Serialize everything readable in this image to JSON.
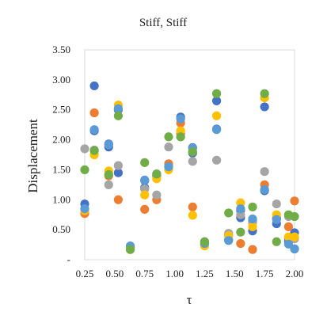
{
  "chart_data": {
    "type": "scatter",
    "title": "Stiff, Stiff",
    "xlabel": "τ",
    "ylabel": "Displacement",
    "xlim": [
      0.25,
      2.0
    ],
    "ylim": [
      0,
      3.5
    ],
    "x_ticks": [
      "0.25",
      "0.50",
      "0.75",
      "1.00",
      "1.25",
      "1.50",
      "1.75",
      "2.00"
    ],
    "y_ticks": [
      "-",
      "0.50",
      "1.00",
      "1.50",
      "2.00",
      "2.50",
      "3.00",
      "3.50"
    ],
    "grid": false,
    "legend": "none",
    "series": [
      {
        "color": "#4472C4",
        "points": [
          [
            0.25,
            0.93
          ],
          [
            0.33,
            2.9
          ],
          [
            0.33,
            2.15
          ],
          [
            0.45,
            1.88
          ],
          [
            0.45,
            1.93
          ],
          [
            0.53,
            1.45
          ],
          [
            0.53,
            2.5
          ],
          [
            0.63,
            0.22
          ],
          [
            0.75,
            1.2
          ],
          [
            0.75,
            1.32
          ],
          [
            0.85,
            1.4
          ],
          [
            0.95,
            1.55
          ],
          [
            1.05,
            2.38
          ],
          [
            1.15,
            1.87
          ],
          [
            1.15,
            1.78
          ],
          [
            1.25,
            0.27
          ],
          [
            1.35,
            2.65
          ],
          [
            1.35,
            2.18
          ],
          [
            1.45,
            0.33
          ],
          [
            1.55,
            0.7
          ],
          [
            1.55,
            0.82
          ],
          [
            1.65,
            0.48
          ],
          [
            1.65,
            0.65
          ],
          [
            1.75,
            2.55
          ],
          [
            1.75,
            1.15
          ],
          [
            1.85,
            0.6
          ],
          [
            1.85,
            0.68
          ],
          [
            1.95,
            0.35
          ],
          [
            1.95,
            0.3
          ],
          [
            2.0,
            0.45
          ],
          [
            2.0,
            0.18
          ]
        ]
      },
      {
        "color": "#ED7D31",
        "points": [
          [
            0.25,
            0.77
          ],
          [
            0.33,
            2.45
          ],
          [
            0.45,
            1.4
          ],
          [
            0.53,
            1.0
          ],
          [
            0.63,
            0.2
          ],
          [
            0.75,
            0.84
          ],
          [
            0.85,
            1.0
          ],
          [
            0.95,
            1.6
          ],
          [
            1.05,
            2.28
          ],
          [
            1.05,
            2.1
          ],
          [
            1.15,
            0.88
          ],
          [
            1.25,
            0.25
          ],
          [
            1.45,
            0.4
          ],
          [
            1.55,
            0.27
          ],
          [
            1.65,
            0.17
          ],
          [
            1.75,
            1.25
          ],
          [
            1.85,
            0.7
          ],
          [
            1.95,
            0.55
          ],
          [
            2.0,
            0.98
          ]
        ]
      },
      {
        "color": "#A5A5A5",
        "points": [
          [
            0.25,
            1.85
          ],
          [
            0.33,
            1.83
          ],
          [
            0.45,
            1.25
          ],
          [
            0.53,
            1.57
          ],
          [
            0.63,
            0.2
          ],
          [
            0.75,
            1.18
          ],
          [
            0.85,
            1.08
          ],
          [
            0.95,
            1.88
          ],
          [
            1.05,
            2.05
          ],
          [
            1.15,
            1.64
          ],
          [
            1.25,
            0.3
          ],
          [
            1.35,
            1.66
          ],
          [
            1.45,
            0.44
          ],
          [
            1.55,
            0.75
          ],
          [
            1.65,
            0.62
          ],
          [
            1.75,
            1.47
          ],
          [
            1.85,
            0.93
          ],
          [
            1.95,
            0.72
          ],
          [
            2.0,
            0.35
          ]
        ]
      },
      {
        "color": "#FFC000",
        "points": [
          [
            0.25,
            0.82
          ],
          [
            0.33,
            1.75
          ],
          [
            0.45,
            1.48
          ],
          [
            0.53,
            2.58
          ],
          [
            0.63,
            0.17
          ],
          [
            0.75,
            1.08
          ],
          [
            0.85,
            1.35
          ],
          [
            0.95,
            1.5
          ],
          [
            1.05,
            2.15
          ],
          [
            1.15,
            0.74
          ],
          [
            1.25,
            0.23
          ],
          [
            1.35,
            2.4
          ],
          [
            1.45,
            0.4
          ],
          [
            1.55,
            0.95
          ],
          [
            1.65,
            0.55
          ],
          [
            1.75,
            2.7
          ],
          [
            1.85,
            0.75
          ],
          [
            1.95,
            0.38
          ],
          [
            2.0,
            0.38
          ]
        ]
      },
      {
        "color": "#5B9BD5",
        "points": [
          [
            0.25,
            0.85
          ],
          [
            0.33,
            2.17
          ],
          [
            0.45,
            1.92
          ],
          [
            0.53,
            2.52
          ],
          [
            0.63,
            0.23
          ],
          [
            0.75,
            1.33
          ],
          [
            0.85,
            1.43
          ],
          [
            0.95,
            1.55
          ],
          [
            1.05,
            2.35
          ],
          [
            1.15,
            1.86
          ],
          [
            1.25,
            0.27
          ],
          [
            1.35,
            2.17
          ],
          [
            1.45,
            0.32
          ],
          [
            1.55,
            0.85
          ],
          [
            1.65,
            0.68
          ],
          [
            1.75,
            1.17
          ],
          [
            1.85,
            0.67
          ],
          [
            1.95,
            0.26
          ],
          [
            2.0,
            0.18
          ]
        ]
      },
      {
        "color": "#70AD47",
        "points": [
          [
            0.25,
            1.5
          ],
          [
            0.33,
            1.82
          ],
          [
            0.45,
            1.42
          ],
          [
            0.53,
            2.4
          ],
          [
            0.63,
            0.17
          ],
          [
            0.75,
            1.62
          ],
          [
            0.85,
            1.43
          ],
          [
            0.95,
            2.05
          ],
          [
            1.05,
            2.05
          ],
          [
            1.15,
            1.8
          ],
          [
            1.25,
            0.3
          ],
          [
            1.35,
            2.77
          ],
          [
            1.45,
            0.78
          ],
          [
            1.55,
            0.46
          ],
          [
            1.65,
            0.88
          ],
          [
            1.75,
            2.77
          ],
          [
            1.85,
            0.3
          ],
          [
            1.95,
            0.75
          ],
          [
            2.0,
            0.72
          ]
        ]
      }
    ]
  }
}
